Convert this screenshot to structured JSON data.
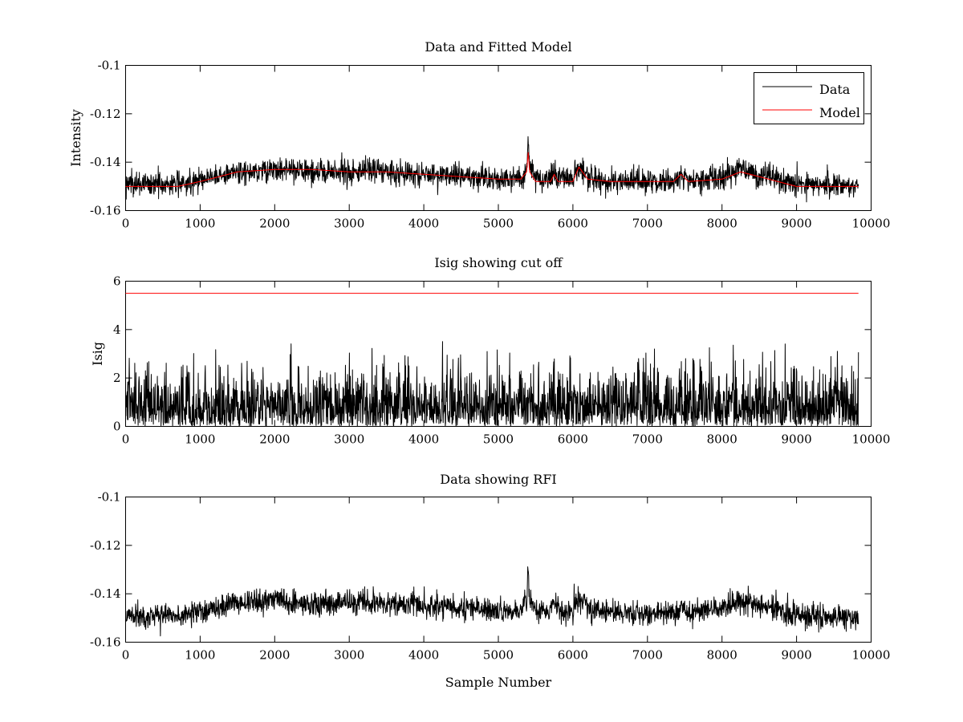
{
  "chart_data": [
    {
      "type": "line",
      "title": "Data and Fitted Model",
      "xlabel": "",
      "ylabel": "Intensity",
      "xlim": [
        0,
        10000
      ],
      "ylim": [
        -0.16,
        -0.1
      ],
      "xticks": [
        0,
        1000,
        2000,
        3000,
        4000,
        5000,
        6000,
        7000,
        8000,
        9000,
        10000
      ],
      "yticks": [
        -0.16,
        -0.14,
        -0.12,
        -0.1
      ],
      "xtick_labels": [
        "0",
        "1000",
        "2000",
        "3000",
        "4000",
        "5000",
        "6000",
        "7000",
        "8000",
        "9000",
        "10000"
      ],
      "ytick_labels": [
        "-0.16",
        "-0.14",
        "-0.12",
        "-0.1"
      ],
      "legend": {
        "position": "top-right",
        "entries": [
          "Data",
          "Model"
        ]
      },
      "series": [
        {
          "name": "Data",
          "color": "#000000",
          "noise_amplitude": 0.0045,
          "x": [
            0,
            700,
            1000,
            1500,
            2000,
            2500,
            3000,
            3300,
            3500,
            4000,
            4500,
            5000,
            5300,
            5380,
            5400,
            5420,
            5500,
            5700,
            5750,
            5800,
            6000,
            6080,
            6200,
            6500,
            7000,
            7350,
            7450,
            7550,
            8000,
            8250,
            8500,
            9000,
            9830
          ],
          "values": [
            -0.149,
            -0.149,
            -0.147,
            -0.144,
            -0.143,
            -0.144,
            -0.144,
            -0.143,
            -0.144,
            -0.145,
            -0.146,
            -0.147,
            -0.147,
            -0.142,
            -0.13,
            -0.142,
            -0.147,
            -0.147,
            -0.144,
            -0.147,
            -0.147,
            -0.141,
            -0.146,
            -0.148,
            -0.148,
            -0.148,
            -0.145,
            -0.148,
            -0.146,
            -0.143,
            -0.145,
            -0.149,
            -0.15
          ]
        },
        {
          "name": "Model",
          "color": "#ff0000",
          "x": [
            0,
            700,
            1000,
            1500,
            2000,
            2500,
            3000,
            3300,
            3500,
            4000,
            4500,
            5000,
            5300,
            5380,
            5400,
            5420,
            5500,
            5700,
            5750,
            5800,
            6000,
            6080,
            6200,
            6500,
            7000,
            7350,
            7450,
            7550,
            8000,
            8250,
            8500,
            9000,
            9830
          ],
          "values": [
            -0.15,
            -0.15,
            -0.148,
            -0.144,
            -0.143,
            -0.143,
            -0.144,
            -0.144,
            -0.144,
            -0.145,
            -0.146,
            -0.147,
            -0.147,
            -0.144,
            -0.136,
            -0.144,
            -0.148,
            -0.148,
            -0.145,
            -0.148,
            -0.148,
            -0.142,
            -0.147,
            -0.148,
            -0.148,
            -0.148,
            -0.145,
            -0.148,
            -0.147,
            -0.144,
            -0.146,
            -0.15,
            -0.15
          ]
        }
      ]
    },
    {
      "type": "line",
      "title": "Isig showing cut off",
      "xlabel": "",
      "ylabel": "Isig",
      "xlim": [
        0,
        10000
      ],
      "ylim": [
        0,
        6
      ],
      "xticks": [
        0,
        1000,
        2000,
        3000,
        4000,
        5000,
        6000,
        7000,
        8000,
        9000,
        10000
      ],
      "yticks": [
        0,
        2,
        4,
        6
      ],
      "xtick_labels": [
        "0",
        "1000",
        "2000",
        "3000",
        "4000",
        "5000",
        "6000",
        "7000",
        "8000",
        "9000",
        "10000"
      ],
      "ytick_labels": [
        "0",
        "2",
        "4",
        "6"
      ],
      "series": [
        {
          "color": "#000000",
          "distribution": "abs_gaussian",
          "typical_max": 3.6,
          "x_range": [
            0,
            9830
          ]
        },
        {
          "color": "#ff0000",
          "x": [
            0,
            9830
          ],
          "values": [
            5.5,
            5.5
          ]
        }
      ]
    },
    {
      "type": "line",
      "title": "Data showing RFI",
      "xlabel": "Sample Number",
      "ylabel": "",
      "xlim": [
        0,
        10000
      ],
      "ylim": [
        -0.16,
        -0.1
      ],
      "xticks": [
        0,
        1000,
        2000,
        3000,
        4000,
        5000,
        6000,
        7000,
        8000,
        9000,
        10000
      ],
      "yticks": [
        -0.16,
        -0.14,
        -0.12,
        -0.1
      ],
      "xtick_labels": [
        "0",
        "1000",
        "2000",
        "3000",
        "4000",
        "5000",
        "6000",
        "7000",
        "8000",
        "9000",
        "10000"
      ],
      "ytick_labels": [
        "-0.16",
        "-0.14",
        "-0.12",
        "-0.1"
      ],
      "series": [
        {
          "color": "#000000",
          "noise_amplitude": 0.0045,
          "x": [
            0,
            700,
            1000,
            1500,
            2000,
            2500,
            3000,
            3300,
            3500,
            4000,
            4500,
            5000,
            5300,
            5380,
            5400,
            5420,
            5500,
            5700,
            5750,
            5800,
            6000,
            6080,
            6200,
            6500,
            7000,
            7350,
            7450,
            7550,
            8000,
            8250,
            8500,
            9000,
            9830
          ],
          "values": [
            -0.149,
            -0.149,
            -0.147,
            -0.144,
            -0.143,
            -0.144,
            -0.144,
            -0.143,
            -0.144,
            -0.145,
            -0.146,
            -0.147,
            -0.147,
            -0.142,
            -0.13,
            -0.142,
            -0.147,
            -0.147,
            -0.144,
            -0.147,
            -0.147,
            -0.141,
            -0.146,
            -0.148,
            -0.148,
            -0.148,
            -0.145,
            -0.148,
            -0.146,
            -0.143,
            -0.145,
            -0.149,
            -0.15
          ]
        }
      ]
    }
  ]
}
